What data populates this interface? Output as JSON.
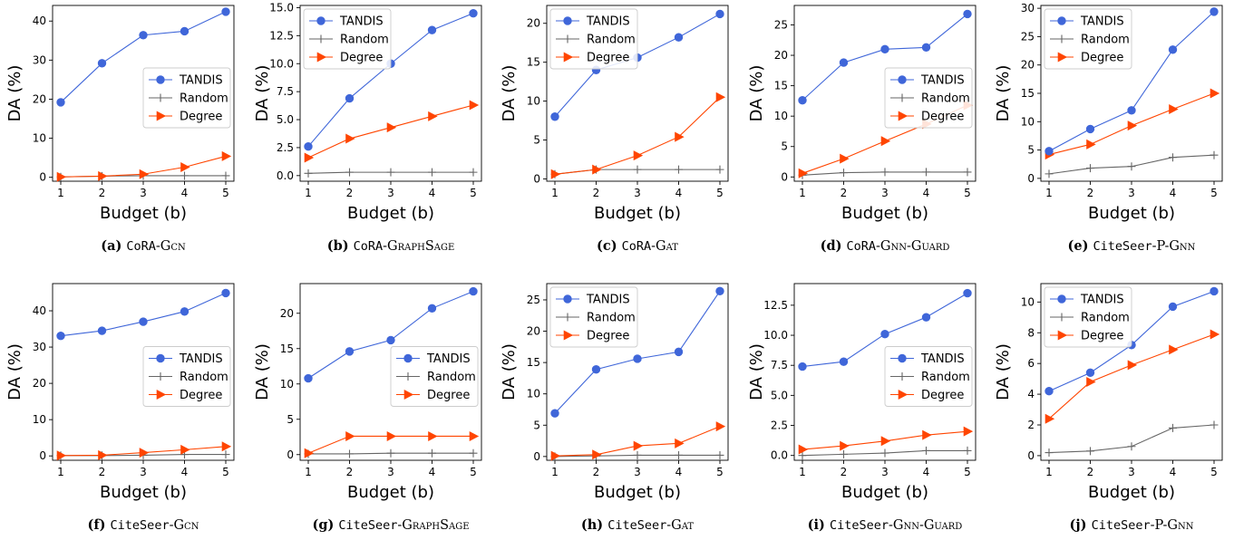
{
  "colors": {
    "tandis": "#3f66d9",
    "random": "#666666",
    "degree": "#ff4500"
  },
  "chart_data": [
    {
      "type": "line",
      "id": "a",
      "tag": "(a)",
      "dataset": "CoRA",
      "model": "Gcn",
      "xlabel": "Budget (b)",
      "ylabel": "DA (%)",
      "x": [
        1,
        2,
        3,
        4,
        5
      ],
      "ylim": [
        -1,
        44
      ],
      "yticks": [
        0,
        10,
        20,
        30,
        40
      ],
      "yfmt": 0,
      "legend": "center-right",
      "series": [
        {
          "name": "TANDIS",
          "values": [
            19.2,
            29.2,
            36.4,
            37.4,
            42.4
          ]
        },
        {
          "name": "Random",
          "values": [
            0.1,
            0.3,
            0.4,
            0.4,
            0.4
          ]
        },
        {
          "name": "Degree",
          "values": [
            0.1,
            0.3,
            0.8,
            2.6,
            5.4
          ]
        }
      ]
    },
    {
      "type": "line",
      "id": "b",
      "tag": "(b)",
      "dataset": "CoRA",
      "model": "GraphSage",
      "xlabel": "Budget (b)",
      "ylabel": "DA (%)",
      "x": [
        1,
        2,
        3,
        4,
        5
      ],
      "ylim": [
        -0.5,
        15.2
      ],
      "yticks": [
        0,
        2.5,
        5,
        7.5,
        10,
        12.5,
        15
      ],
      "yfmt": 1,
      "legend": "upper-left",
      "series": [
        {
          "name": "TANDIS",
          "values": [
            2.6,
            6.9,
            10.0,
            13.0,
            14.5
          ]
        },
        {
          "name": "Random",
          "values": [
            0.2,
            0.3,
            0.3,
            0.3,
            0.3
          ]
        },
        {
          "name": "Degree",
          "values": [
            1.6,
            3.3,
            4.3,
            5.3,
            6.3
          ]
        }
      ]
    },
    {
      "type": "line",
      "id": "c",
      "tag": "(c)",
      "dataset": "CoRA",
      "model": "Gat",
      "xlabel": "Budget (b)",
      "ylabel": "DA (%)",
      "x": [
        1,
        2,
        3,
        4,
        5
      ],
      "ylim": [
        -0.3,
        22.3
      ],
      "yticks": [
        0,
        5,
        10,
        15,
        20
      ],
      "yfmt": 0,
      "legend": "upper-left",
      "series": [
        {
          "name": "TANDIS",
          "values": [
            8.0,
            14.0,
            15.6,
            18.2,
            21.2
          ]
        },
        {
          "name": "Random",
          "values": [
            0.6,
            1.2,
            1.2,
            1.2,
            1.2
          ]
        },
        {
          "name": "Degree",
          "values": [
            0.6,
            1.2,
            3.0,
            5.4,
            10.5
          ]
        }
      ]
    },
    {
      "type": "line",
      "id": "d",
      "tag": "(d)",
      "dataset": "CoRA",
      "model": "Gnn-Guard",
      "xlabel": "Budget (b)",
      "ylabel": "DA (%)",
      "x": [
        1,
        2,
        3,
        4,
        5
      ],
      "ylim": [
        -0.7,
        28.2
      ],
      "yticks": [
        0,
        5,
        10,
        15,
        20,
        25
      ],
      "yfmt": 0,
      "legend": "center-right",
      "series": [
        {
          "name": "TANDIS",
          "values": [
            12.6,
            18.8,
            21.0,
            21.3,
            26.8
          ]
        },
        {
          "name": "Random",
          "values": [
            0.3,
            0.7,
            0.8,
            0.8,
            0.8
          ]
        },
        {
          "name": "Degree",
          "values": [
            0.6,
            3.0,
            5.9,
            8.7,
            11.8
          ]
        }
      ]
    },
    {
      "type": "line",
      "id": "e",
      "tag": "(e)",
      "dataset": "CiteSeer",
      "model": "P-Gnn",
      "xlabel": "Budget (b)",
      "ylabel": "DA (%)",
      "x": [
        1,
        2,
        3,
        4,
        5
      ],
      "ylim": [
        -0.5,
        30.5
      ],
      "yticks": [
        0,
        5,
        10,
        15,
        20,
        25,
        30
      ],
      "yfmt": 0,
      "legend": "upper-left",
      "series": [
        {
          "name": "TANDIS",
          "values": [
            4.8,
            8.7,
            12.0,
            22.7,
            29.4
          ]
        },
        {
          "name": "Random",
          "values": [
            0.8,
            1.8,
            2.1,
            3.7,
            4.1
          ]
        },
        {
          "name": "Degree",
          "values": [
            4.2,
            6.0,
            9.3,
            12.2,
            15.0
          ]
        }
      ]
    },
    {
      "type": "line",
      "id": "f",
      "tag": "(f)",
      "dataset": "CiteSeer",
      "model": "Gcn",
      "xlabel": "Budget (b)",
      "ylabel": "DA (%)",
      "x": [
        1,
        2,
        3,
        4,
        5
      ],
      "ylim": [
        -1.2,
        47.5
      ],
      "yticks": [
        0,
        10,
        20,
        30,
        40
      ],
      "yfmt": 0,
      "legend": "center-right",
      "series": [
        {
          "name": "TANDIS",
          "values": [
            33.1,
            34.5,
            37.0,
            39.8,
            44.9
          ]
        },
        {
          "name": "Random",
          "values": [
            0.1,
            0.1,
            0.2,
            0.4,
            0.4
          ]
        },
        {
          "name": "Degree",
          "values": [
            0.1,
            0.2,
            0.9,
            1.7,
            2.6
          ]
        }
      ]
    },
    {
      "type": "line",
      "id": "g",
      "tag": "(g)",
      "dataset": "CiteSeer",
      "model": "GraphSage",
      "xlabel": "Budget (b)",
      "ylabel": "DA (%)",
      "x": [
        1,
        2,
        3,
        4,
        5
      ],
      "ylim": [
        -0.8,
        24.2
      ],
      "yticks": [
        0,
        5,
        10,
        15,
        20
      ],
      "yfmt": 0,
      "legend": "center-right",
      "series": [
        {
          "name": "TANDIS",
          "values": [
            10.8,
            14.6,
            16.2,
            20.7,
            23.1
          ]
        },
        {
          "name": "Random",
          "values": [
            0.1,
            0.1,
            0.2,
            0.2,
            0.2
          ]
        },
        {
          "name": "Degree",
          "values": [
            0.2,
            2.6,
            2.6,
            2.6,
            2.6
          ]
        }
      ]
    },
    {
      "type": "line",
      "id": "h",
      "tag": "(h)",
      "dataset": "CiteSeer",
      "model": "Gat",
      "xlabel": "Budget (b)",
      "ylabel": "DA (%)",
      "x": [
        1,
        2,
        3,
        4,
        5
      ],
      "ylim": [
        -0.6,
        27.6
      ],
      "yticks": [
        0,
        5,
        10,
        15,
        20,
        25
      ],
      "yfmt": 0,
      "legend": "upper-left",
      "series": [
        {
          "name": "TANDIS",
          "values": [
            6.9,
            13.9,
            15.6,
            16.7,
            26.4
          ]
        },
        {
          "name": "Random",
          "values": [
            0.0,
            0.1,
            0.2,
            0.2,
            0.2
          ]
        },
        {
          "name": "Degree",
          "values": [
            0.1,
            0.3,
            1.7,
            2.1,
            4.8
          ]
        }
      ]
    },
    {
      "type": "line",
      "id": "i",
      "tag": "(i)",
      "dataset": "CiteSeer",
      "model": "Gnn-Guard",
      "xlabel": "Budget (b)",
      "ylabel": "DA (%)",
      "x": [
        1,
        2,
        3,
        4,
        5
      ],
      "ylim": [
        -0.4,
        14.3
      ],
      "yticks": [
        0,
        2.5,
        5,
        7.5,
        10,
        12.5
      ],
      "yfmt": 1,
      "legend": "center-right",
      "series": [
        {
          "name": "TANDIS",
          "values": [
            7.4,
            7.8,
            10.1,
            11.5,
            13.5
          ]
        },
        {
          "name": "Random",
          "values": [
            0.0,
            0.1,
            0.2,
            0.4,
            0.4
          ]
        },
        {
          "name": "Degree",
          "values": [
            0.5,
            0.8,
            1.2,
            1.7,
            2.0
          ]
        }
      ]
    },
    {
      "type": "line",
      "id": "j",
      "tag": "(j)",
      "dataset": "CiteSeer",
      "model": "P-Gnn",
      "xlabel": "Budget (b)",
      "ylabel": "DA (%)",
      "x": [
        1,
        2,
        3,
        4,
        5
      ],
      "ylim": [
        -0.3,
        11.2
      ],
      "yticks": [
        0,
        2,
        4,
        6,
        8,
        10
      ],
      "yfmt": 0,
      "legend": "upper-left",
      "series": [
        {
          "name": "TANDIS",
          "values": [
            4.2,
            5.4,
            7.2,
            9.7,
            10.7
          ]
        },
        {
          "name": "Random",
          "values": [
            0.2,
            0.3,
            0.6,
            1.8,
            2.0
          ]
        },
        {
          "name": "Degree",
          "values": [
            2.4,
            4.8,
            5.9,
            6.9,
            7.9
          ]
        }
      ]
    }
  ]
}
